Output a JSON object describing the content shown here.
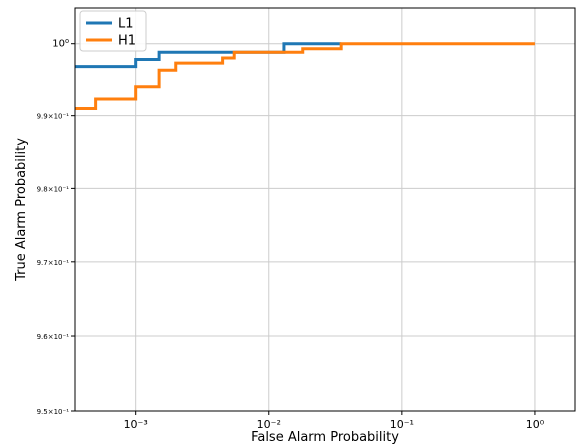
{
  "chart_data": {
    "type": "line",
    "title": "",
    "xlabel": "False Alarm Probability",
    "ylabel": "True Alarm Probability",
    "xscale": "log",
    "yscale": "log",
    "xlim": [
      0.00035,
      2.0
    ],
    "ylim": [
      0.95,
      1.005
    ],
    "grid": true,
    "legend_position": "top-left",
    "x_ticks": [
      {
        "value": 0.001,
        "label": "10⁻³"
      },
      {
        "value": 0.01,
        "label": "10⁻²"
      },
      {
        "value": 0.1,
        "label": "10⁻¹"
      },
      {
        "value": 1.0,
        "label": "10⁰"
      }
    ],
    "y_ticks": [
      {
        "value": 0.95,
        "label": "9.5×10⁻¹"
      },
      {
        "value": 0.96,
        "label": "9.6×10⁻¹"
      },
      {
        "value": 0.97,
        "label": "9.7×10⁻¹"
      },
      {
        "value": 0.98,
        "label": "9.8×10⁻¹"
      },
      {
        "value": 0.99,
        "label": "9.9×10⁻¹"
      },
      {
        "value": 1.0,
        "label": "10⁰"
      }
    ],
    "series": [
      {
        "name": "L1",
        "color": "#1f77b4",
        "points": [
          [
            0.00035,
            0.9968
          ],
          [
            0.001,
            0.9968
          ],
          [
            0.001,
            0.9978
          ],
          [
            0.0015,
            0.9978
          ],
          [
            0.0015,
            0.9988
          ],
          [
            0.013,
            0.9988
          ],
          [
            0.013,
            1.0
          ],
          [
            0.035,
            1.0
          ]
        ]
      },
      {
        "name": "H1",
        "color": "#ff7f0e",
        "points": [
          [
            0.00035,
            0.991
          ],
          [
            0.0005,
            0.991
          ],
          [
            0.0005,
            0.9923
          ],
          [
            0.001,
            0.9923
          ],
          [
            0.001,
            0.994
          ],
          [
            0.0015,
            0.994
          ],
          [
            0.0015,
            0.9963
          ],
          [
            0.002,
            0.9963
          ],
          [
            0.002,
            0.9973
          ],
          [
            0.0045,
            0.9973
          ],
          [
            0.0045,
            0.998
          ],
          [
            0.0055,
            0.998
          ],
          [
            0.0055,
            0.9988
          ],
          [
            0.018,
            0.9988
          ],
          [
            0.018,
            0.9993
          ],
          [
            0.035,
            0.9993
          ],
          [
            0.035,
            1.0
          ],
          [
            1.0,
            1.0
          ]
        ]
      }
    ]
  }
}
